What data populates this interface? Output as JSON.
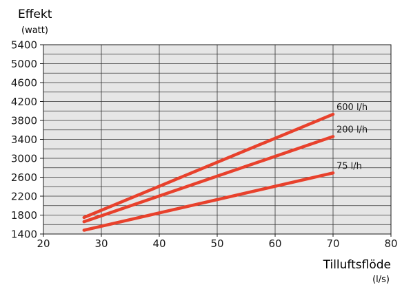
{
  "chart_data": {
    "type": "line",
    "ylabel": "Effekt",
    "ylabel_unit": "(watt)",
    "xlabel": "Tilluftsflöde",
    "xlabel_unit": "(l/s)",
    "xlim": [
      20,
      80
    ],
    "ylim": [
      1400,
      5400
    ],
    "x_ticks": [
      20,
      30,
      40,
      50,
      60,
      70,
      80
    ],
    "y_ticks": [
      1400,
      1800,
      2200,
      2600,
      3000,
      3400,
      3800,
      4200,
      4600,
      5000,
      5400
    ],
    "y_grid_step": 200,
    "grid": true,
    "plot_background": "#e6e6e6",
    "line_color": "#e8412c",
    "series": [
      {
        "name": "600 l/h",
        "x": [
          27,
          70
        ],
        "y": [
          1750,
          3930
        ]
      },
      {
        "name": "200 l/h",
        "x": [
          27,
          70
        ],
        "y": [
          1660,
          3460
        ]
      },
      {
        "name": "75 l/h",
        "x": [
          27,
          70
        ],
        "y": [
          1480,
          2690
        ]
      }
    ]
  }
}
